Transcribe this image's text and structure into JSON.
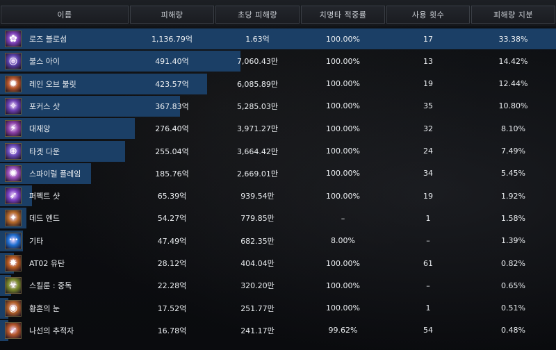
{
  "columns": {
    "name": "이름",
    "damage": "피해량",
    "dps": "초당 피해량",
    "crit": "치명타 적중률",
    "uses": "사용 횟수",
    "share": "피해량 지분"
  },
  "rows": [
    {
      "name": "로즈 블로섬",
      "damage": "1,136.79억",
      "dps": "1.63억",
      "crit": "100.00%",
      "uses": "17",
      "share": "33.38%",
      "share_value": 33.38,
      "icon": "rose-blossom-icon",
      "icon_color": "#7b3fb5"
    },
    {
      "name": "불스 아이",
      "damage": "491.40억",
      "dps": "7,060.43만",
      "crit": "100.00%",
      "uses": "13",
      "share": "14.42%",
      "share_value": 14.42,
      "icon": "bulls-eye-icon",
      "icon_color": "#5a3fa8"
    },
    {
      "name": "레인 오브 불릿",
      "damage": "423.57억",
      "dps": "6,085.89만",
      "crit": "100.00%",
      "uses": "19",
      "share": "12.44%",
      "share_value": 12.44,
      "icon": "rain-of-bullet-icon",
      "icon_color": "#b5562a"
    },
    {
      "name": "포커스 샷",
      "damage": "367.83억",
      "dps": "5,285.03만",
      "crit": "100.00%",
      "uses": "35",
      "share": "10.80%",
      "share_value": 10.8,
      "icon": "focus-shot-icon",
      "icon_color": "#6b3fb0"
    },
    {
      "name": "대재앙",
      "damage": "276.40억",
      "dps": "3,971.27만",
      "crit": "100.00%",
      "uses": "32",
      "share": "8.10%",
      "share_value": 8.1,
      "icon": "catastrophe-icon",
      "icon_color": "#8a3fa5"
    },
    {
      "name": "타겟 다운",
      "damage": "255.04억",
      "dps": "3,664.42만",
      "crit": "100.00%",
      "uses": "24",
      "share": "7.49%",
      "share_value": 7.49,
      "icon": "target-down-icon",
      "icon_color": "#6a4ab8"
    },
    {
      "name": "스파이럴 플레임",
      "damage": "185.76억",
      "dps": "2,669.01만",
      "crit": "100.00%",
      "uses": "34",
      "share": "5.45%",
      "share_value": 5.45,
      "icon": "spiral-flame-icon",
      "icon_color": "#9a4fb8"
    },
    {
      "name": "퍼펙트 샷",
      "damage": "65.39억",
      "dps": "939.54만",
      "crit": "100.00%",
      "uses": "19",
      "share": "1.92%",
      "share_value": 1.92,
      "icon": "perfect-shot-icon",
      "icon_color": "#7a3fc0"
    },
    {
      "name": "데드 엔드",
      "damage": "54.27억",
      "dps": "779.85만",
      "crit": "–",
      "uses": "1",
      "share": "1.58%",
      "share_value": 1.58,
      "icon": "dead-end-icon",
      "icon_color": "#b56a2a"
    },
    {
      "name": "기타",
      "damage": "47.49억",
      "dps": "682.35만",
      "crit": "8.00%",
      "uses": "–",
      "share": "1.39%",
      "share_value": 1.39,
      "icon": "more-icon",
      "icon_color": "#1f6fd1"
    },
    {
      "name": "AT02 유탄",
      "damage": "28.12억",
      "dps": "404.04만",
      "crit": "100.00%",
      "uses": "61",
      "share": "0.82%",
      "share_value": 0.82,
      "icon": "grenade-icon",
      "icon_color": "#b55a1f"
    },
    {
      "name": "스킬룬 : 중독",
      "damage": "22.28억",
      "dps": "320.20만",
      "crit": "100.00%",
      "uses": "–",
      "share": "0.65%",
      "share_value": 0.65,
      "icon": "poison-rune-icon",
      "icon_color": "#7a8a2a"
    },
    {
      "name": "황혼의 눈",
      "damage": "17.52억",
      "dps": "251.77만",
      "crit": "100.00%",
      "uses": "1",
      "share": "0.51%",
      "share_value": 0.51,
      "icon": "twilight-eye-icon",
      "icon_color": "#b5622a"
    },
    {
      "name": "나선의 추적자",
      "damage": "16.78억",
      "dps": "241.17만",
      "crit": "99.62%",
      "uses": "54",
      "share": "0.48%",
      "share_value": 0.48,
      "icon": "spiral-tracker-icon",
      "icon_color": "#b5562a"
    }
  ],
  "colors": {
    "bar": "#1b3f66",
    "bar_top": "#2b5f99",
    "header_border": "#3a3e45"
  }
}
